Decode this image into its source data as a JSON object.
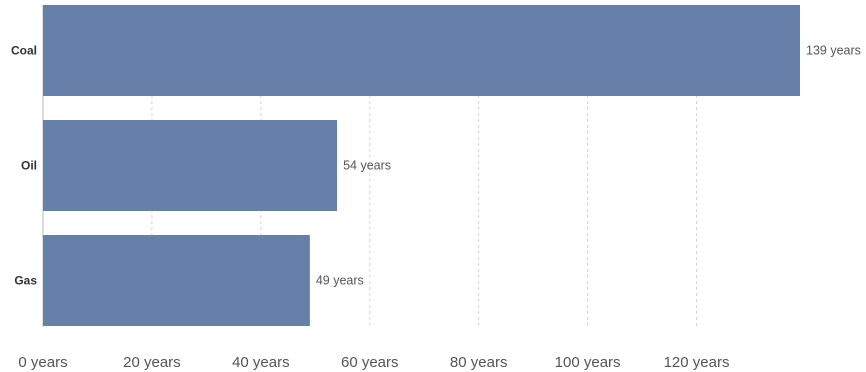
{
  "chart_data": {
    "type": "bar",
    "orientation": "horizontal",
    "categories": [
      "Coal",
      "Oil",
      "Gas"
    ],
    "values": [
      139,
      54,
      49
    ],
    "value_labels": [
      "139 years",
      "54 years",
      "49 years"
    ],
    "title": "",
    "xlabel": "",
    "ylabel": "",
    "xlim": [
      0,
      139
    ],
    "x_ticks": [
      0,
      20,
      40,
      60,
      80,
      100,
      120
    ],
    "x_tick_labels": [
      "0 years",
      "20 years",
      "40 years",
      "60 years",
      "80 years",
      "100 years",
      "120 years"
    ],
    "grid": true,
    "legend": "none",
    "bar_color": "#6780aa"
  }
}
